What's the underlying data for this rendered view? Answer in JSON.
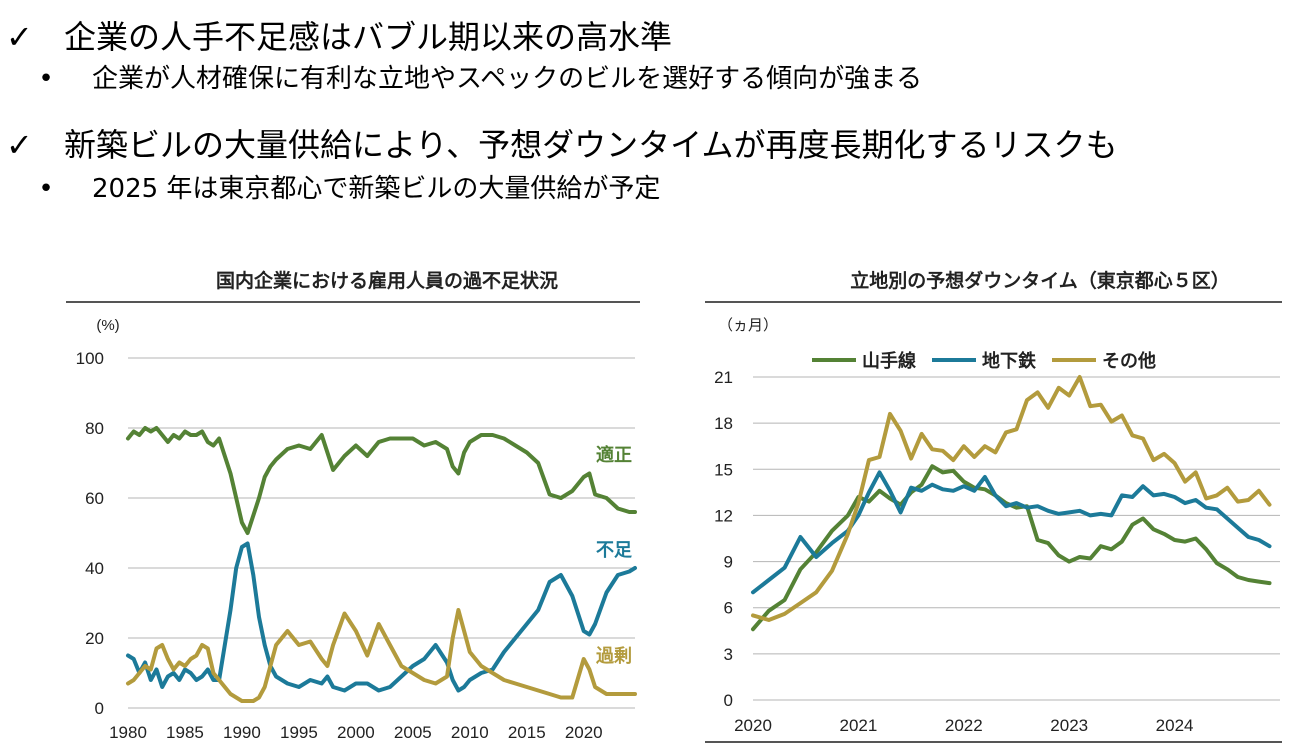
{
  "bullets": [
    {
      "marker": "✓",
      "text": "企業の人手不足感はバブル期以来の高水準",
      "sub": {
        "marker": "•",
        "text": "企業が人材確保に有利な立地やスペックのビルを選好する傾向が強まる"
      }
    },
    {
      "marker": "✓",
      "text": "新築ビルの大量供給により、予想ダウンタイムが再度長期化するリスクも",
      "sub": {
        "marker": "•",
        "text": "2025 年は東京都心で新築ビルの大量供給が予定"
      }
    }
  ],
  "chart_data": [
    {
      "type": "line",
      "title": "国内企業における雇用人員の過不足状況",
      "ylabel": "(%)",
      "ylim": [
        0,
        100
      ],
      "yticks": [
        "0",
        "20",
        "40",
        "60",
        "80",
        "100"
      ],
      "xlim": [
        1980,
        2024.5
      ],
      "xticks": [
        "1980",
        "1985",
        "1990",
        "1995",
        "2000",
        "2005",
        "2010",
        "2015",
        "2020"
      ],
      "series": [
        {
          "name": "適正",
          "color": "#548235",
          "x": [
            1980,
            1980.5,
            1981,
            1981.5,
            1982,
            1982.5,
            1983,
            1983.5,
            1984,
            1984.5,
            1985,
            1985.5,
            1986,
            1986.5,
            1987,
            1987.5,
            1988,
            1988.5,
            1989,
            1989.5,
            1990,
            1990.5,
            1991,
            1991.5,
            1992,
            1992.5,
            1993,
            1994,
            1995,
            1996,
            1997,
            1997.5,
            1998,
            1999,
            2000,
            2001,
            2002,
            2003,
            2004,
            2005,
            2006,
            2007,
            2008,
            2008.5,
            2009,
            2009.5,
            2010,
            2011,
            2012,
            2013,
            2014,
            2015,
            2016,
            2017,
            2018,
            2019,
            2020,
            2020.5,
            2021,
            2022,
            2023,
            2024,
            2024.5
          ],
          "y": [
            77,
            79,
            78,
            80,
            79,
            80,
            78,
            76,
            78,
            77,
            79,
            78,
            78,
            79,
            76,
            75,
            77,
            72,
            67,
            60,
            53,
            50,
            55,
            60,
            66,
            69,
            71,
            74,
            75,
            74,
            78,
            73,
            68,
            72,
            75,
            72,
            76,
            77,
            77,
            77,
            75,
            76,
            74,
            69,
            67,
            73,
            76,
            78,
            78,
            77,
            75,
            73,
            70,
            61,
            60,
            62,
            66,
            67,
            61,
            60,
            57,
            56,
            56
          ]
        },
        {
          "name": "不足",
          "color": "#1c7a99",
          "x": [
            1980,
            1980.5,
            1981,
            1981.5,
            1982,
            1982.5,
            1983,
            1983.5,
            1984,
            1984.5,
            1985,
            1985.5,
            1986,
            1986.5,
            1987,
            1987.5,
            1988,
            1988.5,
            1989,
            1989.5,
            1990,
            1990.5,
            1991,
            1991.5,
            1992,
            1992.5,
            1993,
            1994,
            1995,
            1996,
            1997,
            1997.5,
            1998,
            1999,
            2000,
            2001,
            2002,
            2003,
            2004,
            2005,
            2006,
            2007,
            2008,
            2008.5,
            2009,
            2009.5,
            2010,
            2011,
            2012,
            2013,
            2014,
            2015,
            2016,
            2017,
            2018,
            2019,
            2020,
            2020.5,
            2021,
            2022,
            2023,
            2024,
            2024.5
          ],
          "y": [
            15,
            14,
            10,
            13,
            8,
            11,
            6,
            9,
            10,
            8,
            11,
            10,
            8,
            9,
            11,
            8,
            8,
            18,
            28,
            40,
            46,
            47,
            38,
            26,
            18,
            12,
            9,
            7,
            6,
            8,
            7,
            9,
            6,
            5,
            7,
            7,
            5,
            6,
            9,
            12,
            14,
            18,
            13,
            8,
            5,
            6,
            8,
            10,
            11,
            16,
            20,
            24,
            28,
            36,
            38,
            32,
            22,
            21,
            24,
            33,
            38,
            39,
            40
          ]
        },
        {
          "name": "過剰",
          "color": "#b39b3d",
          "x": [
            1980,
            1980.5,
            1981,
            1981.5,
            1982,
            1982.5,
            1983,
            1983.5,
            1984,
            1984.5,
            1985,
            1985.5,
            1986,
            1986.5,
            1987,
            1987.5,
            1988,
            1988.5,
            1989,
            1989.5,
            1990,
            1990.5,
            1991,
            1991.5,
            1992,
            1992.5,
            1993,
            1994,
            1995,
            1996,
            1997,
            1997.5,
            1998,
            1999,
            2000,
            2001,
            2002,
            2003,
            2004,
            2005,
            2006,
            2007,
            2008,
            2008.5,
            2009,
            2009.5,
            2010,
            2011,
            2012,
            2013,
            2014,
            2015,
            2016,
            2017,
            2018,
            2019,
            2020,
            2020.5,
            2021,
            2022,
            2023,
            2024,
            2024.5
          ],
          "y": [
            7,
            8,
            10,
            12,
            11,
            17,
            18,
            14,
            11,
            13,
            12,
            14,
            15,
            18,
            17,
            10,
            8,
            6,
            4,
            3,
            2,
            2,
            2,
            3,
            6,
            12,
            18,
            22,
            18,
            19,
            14,
            12,
            18,
            27,
            22,
            15,
            24,
            18,
            12,
            10,
            8,
            7,
            9,
            20,
            28,
            22,
            16,
            12,
            10,
            8,
            7,
            6,
            5,
            4,
            3,
            3,
            14,
            11,
            6,
            4,
            4,
            4,
            4
          ]
        }
      ],
      "annotations": [
        "適正",
        "不足",
        "過剰"
      ]
    },
    {
      "type": "line",
      "title": "立地別の予想ダウンタイム（東京都心５区）",
      "ylabel": "（ヵ月）",
      "ylim": [
        0,
        21
      ],
      "yticks": [
        "0",
        "3",
        "6",
        "9",
        "12",
        "15",
        "18",
        "21"
      ],
      "xlim": [
        2020,
        2025
      ],
      "xticks": [
        "2020",
        "2021",
        "2022",
        "2023",
        "2024"
      ],
      "legend_position": "top",
      "series": [
        {
          "name": "山手線",
          "color": "#548235",
          "x": [
            2020,
            2020.15,
            2020.3,
            2020.45,
            2020.6,
            2020.75,
            2020.9,
            2021,
            2021.1,
            2021.2,
            2021.3,
            2021.4,
            2021.5,
            2021.6,
            2021.7,
            2021.8,
            2021.9,
            2022,
            2022.1,
            2022.2,
            2022.3,
            2022.4,
            2022.5,
            2022.6,
            2022.7,
            2022.8,
            2022.9,
            2023,
            2023.1,
            2023.2,
            2023.3,
            2023.4,
            2023.5,
            2023.6,
            2023.7,
            2023.8,
            2023.9,
            2024,
            2024.1,
            2024.2,
            2024.3,
            2024.4,
            2024.5,
            2024.6,
            2024.7,
            2024.8,
            2024.9
          ],
          "y": [
            4.6,
            5.8,
            6.5,
            8.5,
            9.6,
            11,
            12,
            13.2,
            12.9,
            13.6,
            13.1,
            12.7,
            13.5,
            14,
            15.2,
            14.8,
            14.9,
            14.2,
            13.8,
            13.7,
            13.3,
            12.8,
            12.5,
            12.6,
            10.4,
            10.2,
            9.4,
            9,
            9.3,
            9.2,
            10,
            9.8,
            10.3,
            11.4,
            11.8,
            11.1,
            10.8,
            10.4,
            10.3,
            10.5,
            9.8,
            8.9,
            8.5,
            8,
            7.8,
            7.7,
            7.6
          ]
        },
        {
          "name": "地下鉄",
          "color": "#1c7a99",
          "x": [
            2020,
            2020.15,
            2020.3,
            2020.45,
            2020.6,
            2020.75,
            2020.9,
            2021,
            2021.1,
            2021.2,
            2021.3,
            2021.4,
            2021.5,
            2021.6,
            2021.7,
            2021.8,
            2021.9,
            2022,
            2022.1,
            2022.2,
            2022.3,
            2022.4,
            2022.5,
            2022.6,
            2022.7,
            2022.8,
            2022.9,
            2023,
            2023.1,
            2023.2,
            2023.3,
            2023.4,
            2023.5,
            2023.6,
            2023.7,
            2023.8,
            2023.9,
            2024,
            2024.1,
            2024.2,
            2024.3,
            2024.4,
            2024.5,
            2024.6,
            2024.7,
            2024.8,
            2024.9
          ],
          "y": [
            7,
            7.8,
            8.6,
            10.6,
            9.3,
            10.2,
            11,
            12,
            13.5,
            14.8,
            13.6,
            12.2,
            13.8,
            13.6,
            14,
            13.7,
            13.6,
            13.9,
            13.6,
            14.5,
            13.3,
            12.6,
            12.8,
            12.5,
            12.6,
            12.3,
            12.1,
            12.2,
            12.3,
            12,
            12.1,
            12,
            13.3,
            13.2,
            13.9,
            13.3,
            13.4,
            13.2,
            12.8,
            13,
            12.5,
            12.4,
            11.8,
            11.2,
            10.6,
            10.4,
            10
          ]
        },
        {
          "name": "その他",
          "color": "#b39b3d",
          "x": [
            2020,
            2020.15,
            2020.3,
            2020.45,
            2020.6,
            2020.75,
            2020.9,
            2021,
            2021.1,
            2021.2,
            2021.3,
            2021.4,
            2021.5,
            2021.6,
            2021.7,
            2021.8,
            2021.9,
            2022,
            2022.1,
            2022.2,
            2022.3,
            2022.4,
            2022.5,
            2022.6,
            2022.7,
            2022.8,
            2022.9,
            2023,
            2023.1,
            2023.2,
            2023.3,
            2023.4,
            2023.5,
            2023.6,
            2023.7,
            2023.8,
            2023.9,
            2024,
            2024.1,
            2024.2,
            2024.3,
            2024.4,
            2024.5,
            2024.6,
            2024.7,
            2024.8,
            2024.9
          ],
          "y": [
            5.5,
            5.2,
            5.6,
            6.3,
            7,
            8.4,
            10.8,
            12.8,
            15.6,
            15.8,
            18.6,
            17.5,
            15.7,
            17.3,
            16.3,
            16.2,
            15.6,
            16.5,
            15.8,
            16.5,
            16.1,
            17.4,
            17.6,
            19.5,
            20,
            19,
            20.3,
            19.8,
            21,
            19.1,
            19.2,
            18.1,
            18.5,
            17.2,
            17,
            15.6,
            16,
            15.4,
            14.2,
            14.8,
            13.1,
            13.3,
            13.8,
            12.9,
            13,
            13.6,
            12.7
          ]
        }
      ]
    }
  ]
}
